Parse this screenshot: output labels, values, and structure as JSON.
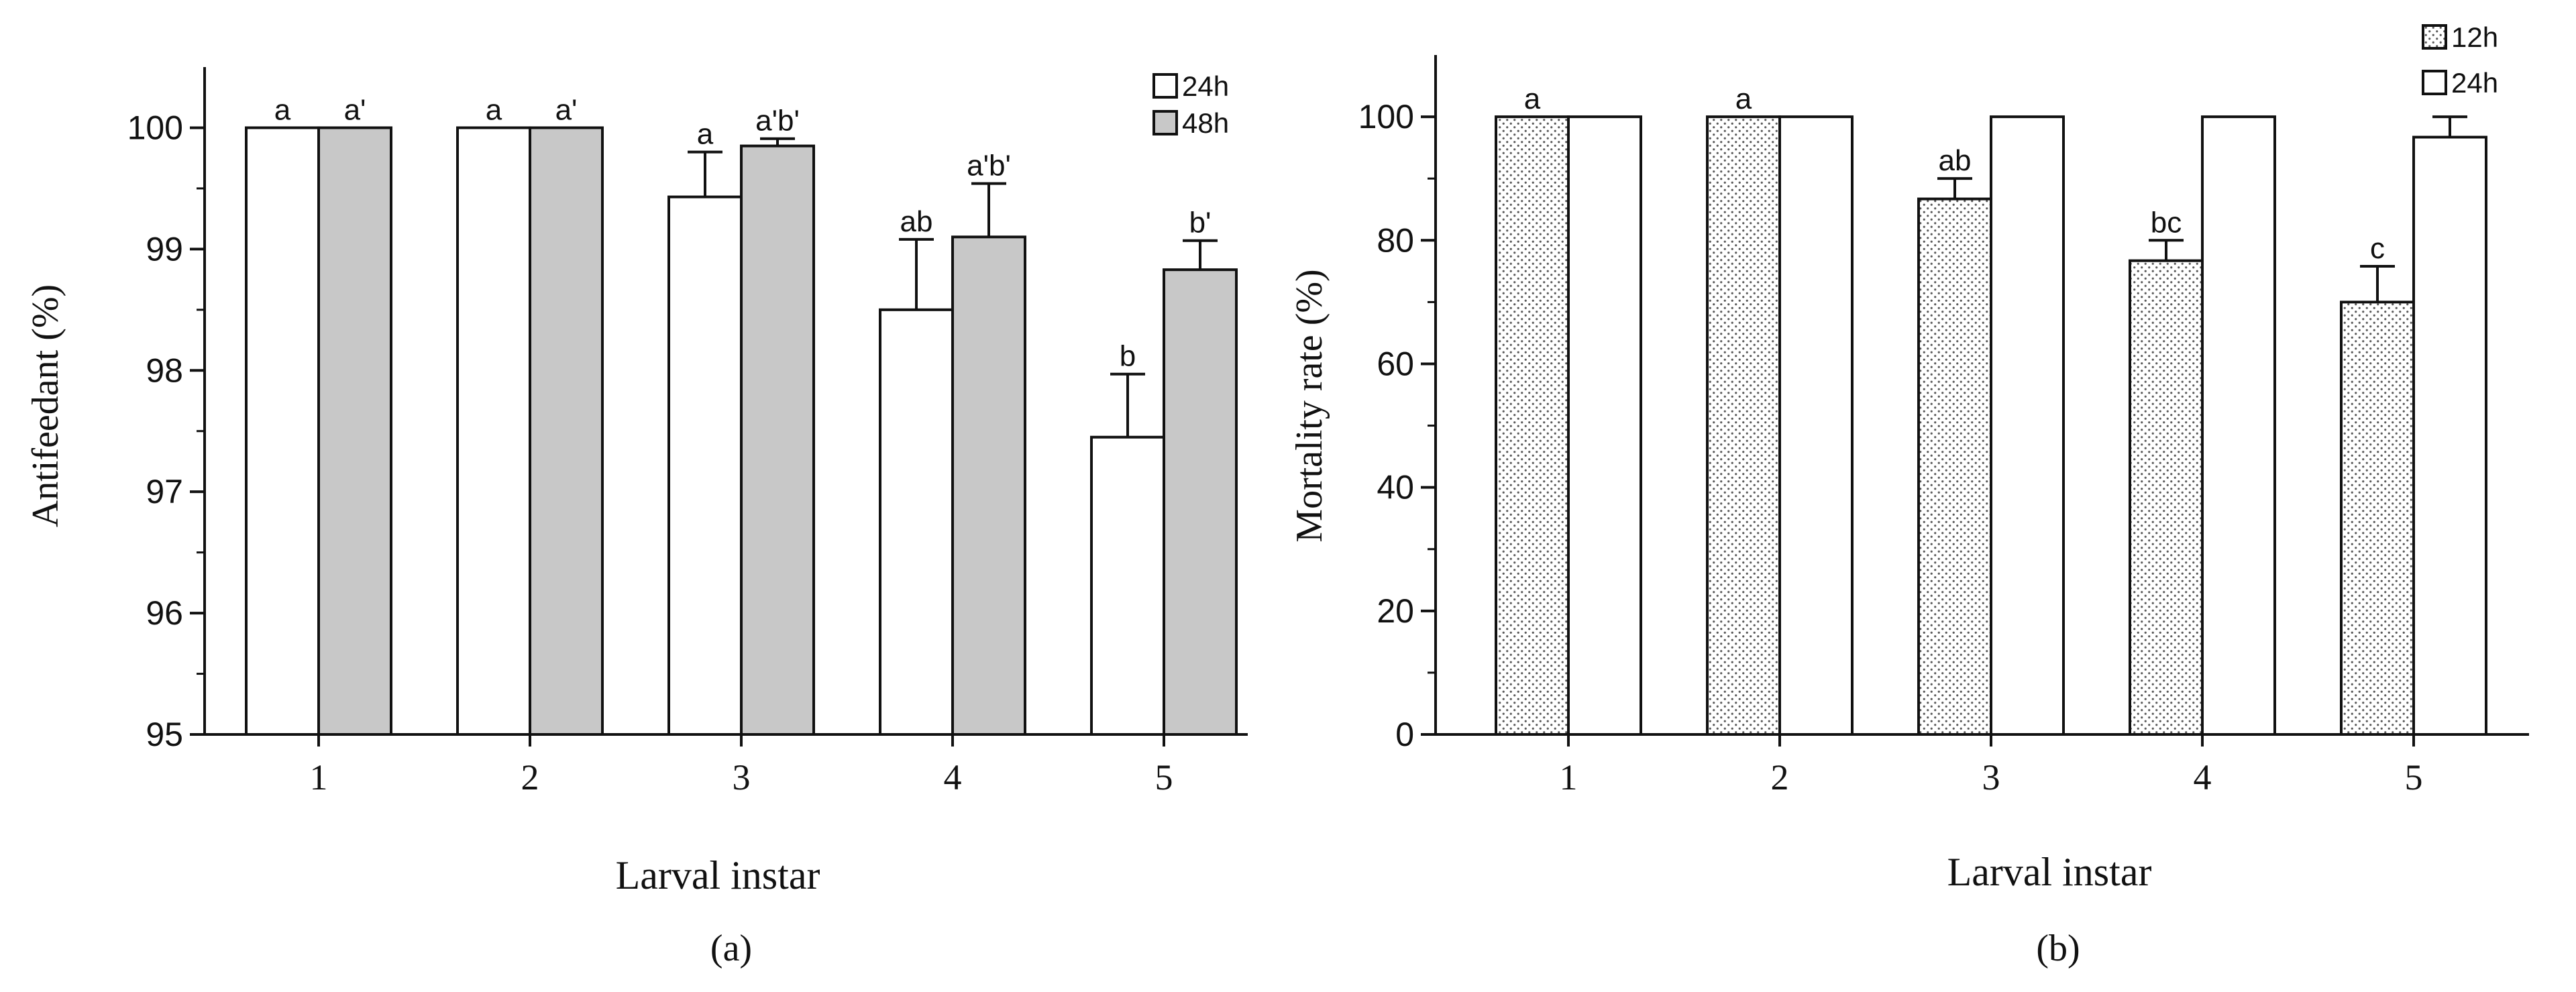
{
  "chart_data": [
    {
      "type": "bar",
      "panel_label": "(a)",
      "ylabel": "Antifeedant (%)",
      "xlabel": "Larval instar",
      "categories": [
        "1",
        "2",
        "3",
        "4",
        "5"
      ],
      "ylim": [
        95,
        100.5
      ],
      "yticks": [
        "95",
        "96",
        "97",
        "98",
        "99",
        "100"
      ],
      "grid": false,
      "legend_position": "top-right",
      "series": [
        {
          "name": "24h",
          "fill": "white",
          "values": [
            100,
            100,
            99.43,
            98.5,
            97.45
          ],
          "errors": [
            0,
            0,
            0.37,
            0.58,
            0.52
          ],
          "labels": [
            "a",
            "a",
            "a",
            "ab",
            "b"
          ]
        },
        {
          "name": "48h",
          "fill": "gray",
          "values": [
            100,
            100,
            99.85,
            99.1,
            98.83
          ],
          "errors": [
            0,
            0,
            0.06,
            0.44,
            0.24
          ],
          "labels": [
            "a'",
            "a'",
            "a'b'",
            "a'b'",
            "b'"
          ]
        }
      ]
    },
    {
      "type": "bar",
      "panel_label": "(b)",
      "ylabel": "Mortality rate (%)",
      "xlabel": "Larval instar",
      "categories": [
        "1",
        "2",
        "3",
        "4",
        "5"
      ],
      "ylim": [
        0,
        110
      ],
      "yticks": [
        "0",
        "20",
        "40",
        "60",
        "80",
        "100"
      ],
      "grid": false,
      "legend_position": "top-right",
      "series": [
        {
          "name": "12h",
          "fill": "dotted",
          "values": [
            100,
            100,
            86.7,
            76.7,
            70
          ],
          "errors": [
            0,
            0,
            3.3,
            3.3,
            5.8
          ],
          "labels": [
            "a",
            "a",
            "ab",
            "bc",
            "c"
          ]
        },
        {
          "name": "24h",
          "fill": "white",
          "values": [
            100,
            100,
            100,
            100,
            96.7
          ],
          "errors": [
            0,
            0,
            0,
            0,
            3.3
          ],
          "labels": [
            "",
            "",
            "",
            "",
            ""
          ]
        }
      ]
    }
  ],
  "colors": {
    "gray_fill": "#c8c8c8",
    "line": "#111111",
    "dot": "#555555"
  }
}
